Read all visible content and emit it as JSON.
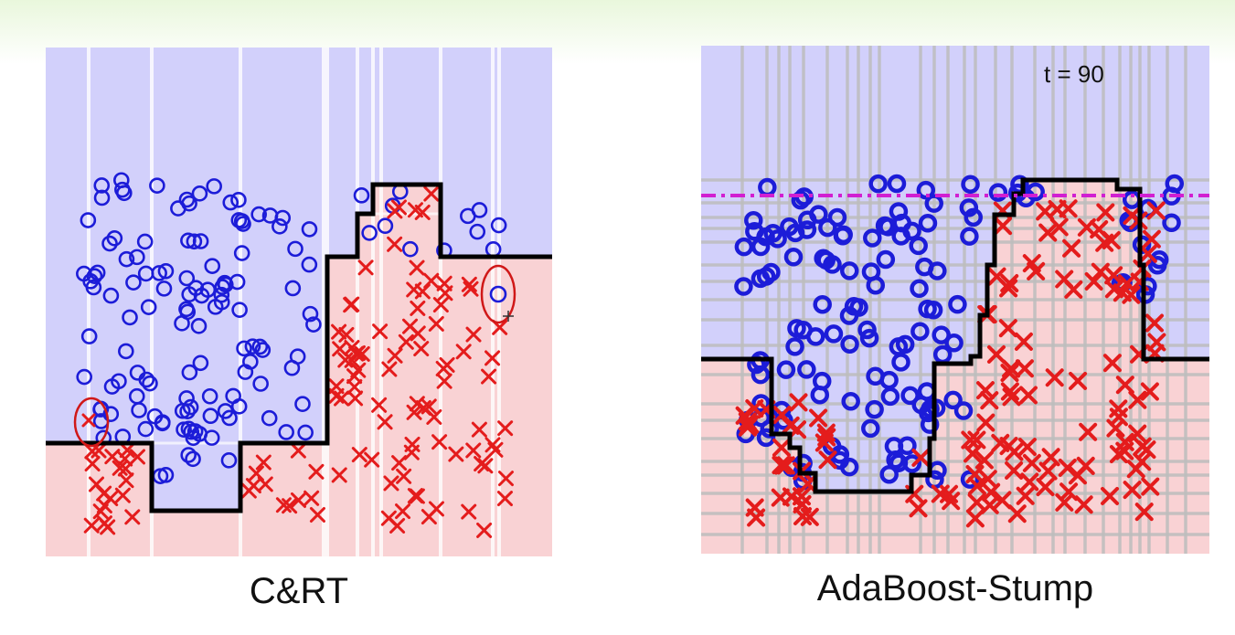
{
  "panels": {
    "left": {
      "title": "C&RT",
      "colors": {
        "blue_region": "#d2d0fb",
        "red_region": "#f9d2d4",
        "o_marker": "#1c1cd8",
        "x_marker": "#e41c1c",
        "boundary": "#000000",
        "grid": "#e6e6e6"
      }
    },
    "right": {
      "title": "AdaBoost-Stump",
      "iteration_label": "t = 90",
      "colors": {
        "blue_region": "#d2d0fb",
        "red_region": "#f9d2d4",
        "o_marker": "#1c1cd8",
        "x_marker": "#e41c1c",
        "boundary": "#000000",
        "grid": "#bdbdbd",
        "dashed_line": "#d11fd1"
      }
    }
  }
}
